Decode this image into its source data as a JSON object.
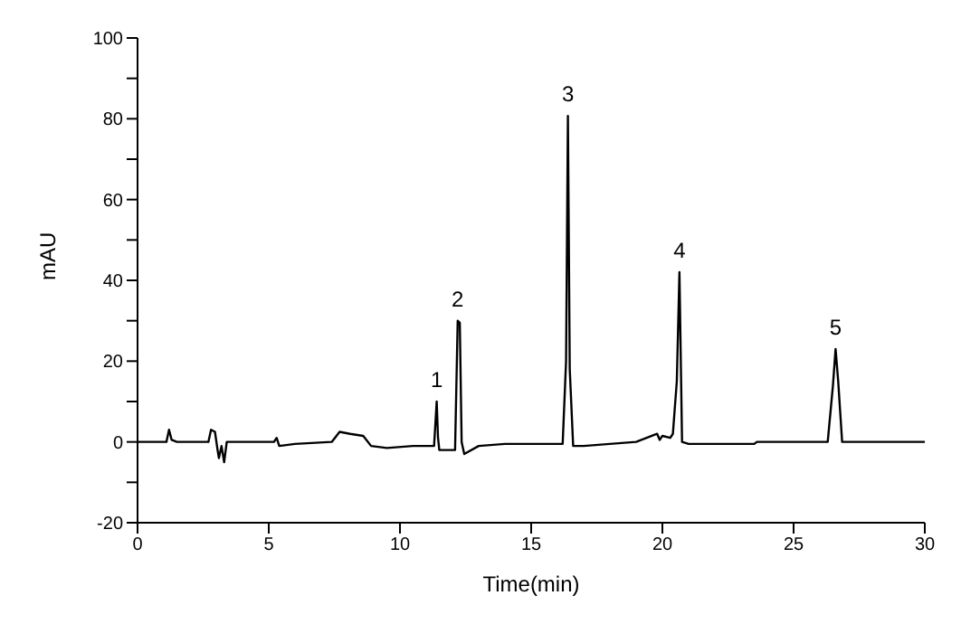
{
  "chart_data": {
    "type": "line",
    "xlabel": "Time(min)",
    "ylabel": "mAU",
    "x": [
      0,
      1.1,
      1.2,
      1.3,
      1.5,
      2.7,
      2.8,
      2.95,
      3.05,
      3.1,
      3.2,
      3.3,
      3.4,
      3.5,
      5.2,
      5.3,
      5.4,
      6,
      7.4,
      7.7,
      8.1,
      8.6,
      8.9,
      9.5,
      10.5,
      11.3,
      11.4,
      11.45,
      11.5,
      11.6,
      12.1,
      12.2,
      12.28,
      12.35,
      12.45,
      13,
      14,
      16.2,
      16.33,
      16.4,
      16.47,
      16.6,
      17,
      19,
      19.8,
      19.9,
      20,
      20.3,
      20.4,
      20.55,
      20.65,
      20.75,
      21,
      23.5,
      23.6,
      26.3,
      26.5,
      26.6,
      26.7,
      26.85,
      30
    ],
    "series": [
      {
        "color": "#000000",
        "values": [
          0,
          0,
          3,
          0.5,
          0,
          0,
          3,
          2.5,
          -2,
          -4,
          -1,
          -5,
          0,
          0,
          0,
          1,
          -1,
          -0.5,
          0,
          2.5,
          2,
          1.5,
          -1,
          -1.5,
          -1,
          -1,
          10,
          1,
          -2,
          -2,
          -2,
          30,
          29.5,
          0,
          -3,
          -1,
          -0.5,
          -0.5,
          20,
          80.7,
          18,
          -1,
          -1,
          0,
          2,
          0.5,
          1.5,
          1,
          2,
          15,
          42,
          0,
          -0.5,
          -0.5,
          0,
          0,
          14,
          23,
          15,
          0,
          0
        ]
      }
    ],
    "xlim": [
      0,
      30
    ],
    "xticks": [
      0,
      5,
      10,
      15,
      20,
      25,
      30
    ],
    "ylim": [
      -20,
      100
    ],
    "yticks": [
      -20,
      {
        "value": -10,
        "label": null
      },
      0,
      {
        "value": 10,
        "label": null
      },
      20,
      {
        "value": 30,
        "label": null
      },
      40,
      {
        "value": 50,
        "label": null
      },
      60,
      {
        "value": 70,
        "label": null
      },
      80,
      {
        "value": 90,
        "label": null
      },
      100
    ],
    "annotations": [
      {
        "text": "1",
        "x": 11.4,
        "y": 10
      },
      {
        "text": "2",
        "x": 12.2,
        "y": 30
      },
      {
        "text": "3",
        "x": 16.4,
        "y": 80.7
      },
      {
        "text": "4",
        "x": 20.65,
        "y": 42
      },
      {
        "text": "5",
        "x": 26.6,
        "y": 23
      }
    ],
    "grid": false,
    "legend": false,
    "marker": "none",
    "line_style": "solid"
  }
}
